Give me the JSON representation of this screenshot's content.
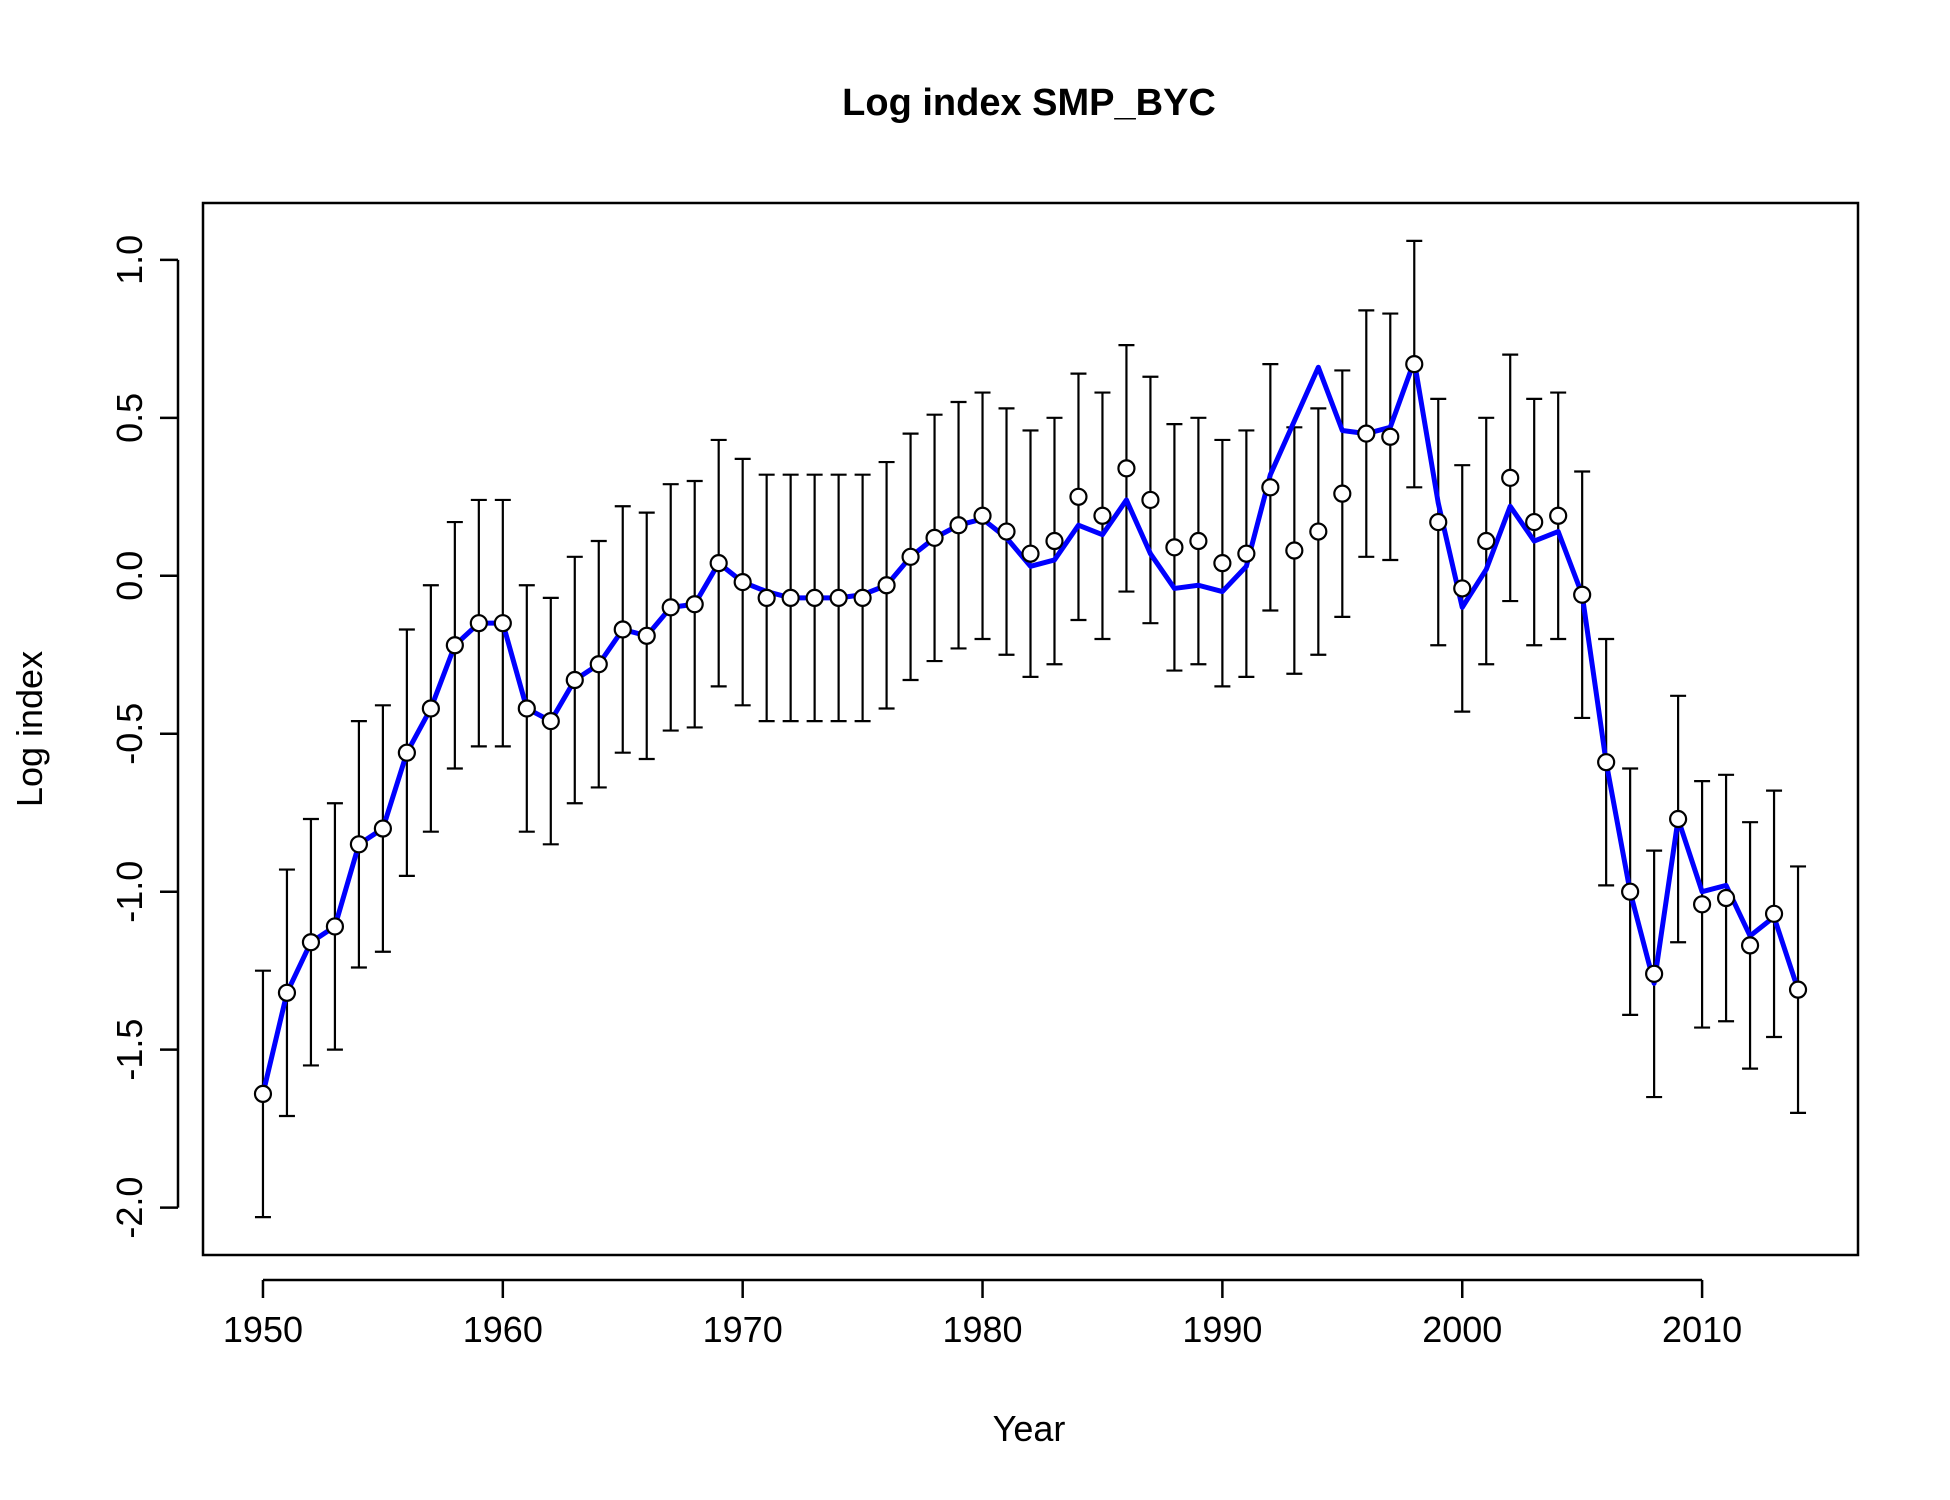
{
  "chart_data": {
    "type": "scatter",
    "title": "Log index SMP_BYC",
    "xlabel": "Year",
    "ylabel": "Log index",
    "xlim": [
      1947.5,
      2016.5
    ],
    "ylim": [
      -2.15,
      1.18
    ],
    "xticks": [
      1950,
      1960,
      1970,
      1980,
      1990,
      2000,
      2010
    ],
    "yticks": [
      -2.0,
      -1.5,
      -1.0,
      -0.5,
      0.0,
      0.5,
      1.0
    ],
    "ytick_labels": [
      "-2.0",
      "-1.5",
      "-1.0",
      "-0.5",
      "0.0",
      "0.5",
      "1.0"
    ],
    "grid": false,
    "x": [
      1950,
      1951,
      1952,
      1953,
      1954,
      1955,
      1956,
      1957,
      1958,
      1959,
      1960,
      1961,
      1962,
      1963,
      1964,
      1965,
      1966,
      1967,
      1968,
      1969,
      1970,
      1971,
      1972,
      1973,
      1974,
      1975,
      1976,
      1977,
      1978,
      1979,
      1980,
      1981,
      1982,
      1983,
      1984,
      1985,
      1986,
      1987,
      1988,
      1989,
      1990,
      1991,
      1992,
      1993,
      1994,
      1995,
      1996,
      1997,
      1998,
      1999,
      2000,
      2001,
      2002,
      2003,
      2004,
      2005,
      2006,
      2007,
      2008,
      2009,
      2010,
      2011,
      2012,
      2013,
      2014
    ],
    "series": [
      {
        "kind": "observed",
        "marker": "open-circle",
        "color": "#000000",
        "values": [
          -1.64,
          -1.32,
          -1.16,
          -1.11,
          -0.85,
          -0.8,
          -0.56,
          -0.42,
          -0.22,
          -0.15,
          -0.15,
          -0.42,
          -0.46,
          -0.33,
          -0.28,
          -0.17,
          -0.19,
          -0.1,
          -0.09,
          0.04,
          -0.02,
          -0.07,
          -0.07,
          -0.07,
          -0.07,
          -0.07,
          -0.03,
          0.06,
          0.12,
          0.16,
          0.19,
          0.14,
          0.07,
          0.11,
          0.25,
          0.19,
          0.34,
          0.24,
          0.09,
          0.11,
          0.04,
          0.07,
          0.28,
          0.08,
          0.14,
          0.26,
          0.45,
          0.44,
          0.67,
          0.17,
          -0.04,
          0.11,
          0.31,
          0.17,
          0.19,
          -0.06,
          -0.59,
          -1.0,
          -1.26,
          -0.77,
          -1.04,
          -1.02,
          -1.17,
          -1.07,
          -1.31
        ],
        "lower": [
          -2.03,
          -1.71,
          -1.55,
          -1.5,
          -1.24,
          -1.19,
          -0.95,
          -0.81,
          -0.61,
          -0.54,
          -0.54,
          -0.81,
          -0.85,
          -0.72,
          -0.67,
          -0.56,
          -0.58,
          -0.49,
          -0.48,
          -0.35,
          -0.41,
          -0.46,
          -0.46,
          -0.46,
          -0.46,
          -0.46,
          -0.42,
          -0.33,
          -0.27,
          -0.23,
          -0.2,
          -0.25,
          -0.32,
          -0.28,
          -0.14,
          -0.2,
          -0.05,
          -0.15,
          -0.3,
          -0.28,
          -0.35,
          -0.32,
          -0.11,
          -0.31,
          -0.25,
          -0.13,
          0.06,
          0.05,
          0.28,
          -0.22,
          -0.43,
          -0.28,
          -0.08,
          -0.22,
          -0.2,
          -0.45,
          -0.98,
          -1.39,
          -1.65,
          -1.16,
          -1.43,
          -1.41,
          -1.56,
          -1.46,
          -1.7
        ],
        "upper": [
          -1.25,
          -0.93,
          -0.77,
          -0.72,
          -0.46,
          -0.41,
          -0.17,
          -0.03,
          0.17,
          0.24,
          0.24,
          -0.03,
          -0.07,
          0.06,
          0.11,
          0.22,
          0.2,
          0.29,
          0.3,
          0.43,
          0.37,
          0.32,
          0.32,
          0.32,
          0.32,
          0.32,
          0.36,
          0.45,
          0.51,
          0.55,
          0.58,
          0.53,
          0.46,
          0.5,
          0.64,
          0.58,
          0.73,
          0.63,
          0.48,
          0.5,
          0.43,
          0.46,
          0.67,
          0.47,
          0.53,
          0.65,
          0.84,
          0.83,
          1.06,
          0.56,
          0.35,
          0.5,
          0.7,
          0.56,
          0.58,
          0.33,
          -0.2,
          -0.61,
          -0.87,
          -0.38,
          -0.65,
          -0.63,
          -0.78,
          -0.68,
          -0.92
        ]
      },
      {
        "kind": "fitted",
        "color": "#0000ff",
        "values": [
          -1.64,
          -1.32,
          -1.16,
          -1.11,
          -0.85,
          -0.8,
          -0.56,
          -0.42,
          -0.22,
          -0.15,
          -0.15,
          -0.42,
          -0.46,
          -0.33,
          -0.28,
          -0.17,
          -0.19,
          -0.1,
          -0.09,
          0.04,
          -0.02,
          -0.05,
          -0.07,
          -0.07,
          -0.07,
          -0.06,
          -0.03,
          0.06,
          0.12,
          0.16,
          0.18,
          0.12,
          0.03,
          0.05,
          0.16,
          0.13,
          0.24,
          0.07,
          -0.04,
          -0.03,
          -0.05,
          0.03,
          0.32,
          0.49,
          0.66,
          0.46,
          0.45,
          0.47,
          0.68,
          0.23,
          -0.1,
          0.02,
          0.22,
          0.11,
          0.14,
          -0.06,
          -0.59,
          -1.0,
          -1.29,
          -0.77,
          -1.0,
          -0.98,
          -1.14,
          -1.08,
          -1.31
        ]
      }
    ]
  }
}
